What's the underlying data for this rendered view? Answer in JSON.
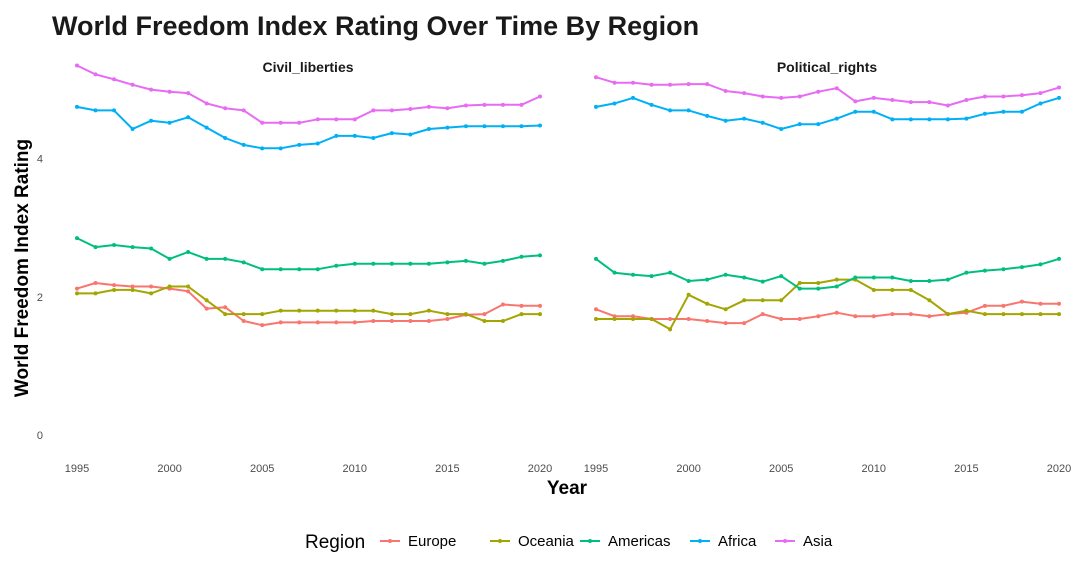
{
  "chart_data": {
    "type": "line",
    "title": "World Freedom Index Rating Over Time By Region",
    "xlabel": "Year",
    "ylabel": "World Freedom Index Rating",
    "ylim": [
      0,
      5.4
    ],
    "xlim": [
      1995,
      2020
    ],
    "x_ticks": [
      1995,
      2000,
      2005,
      2010,
      2015,
      2020
    ],
    "y_ticks": [
      0,
      2,
      4
    ],
    "grid": false,
    "legend": {
      "title": "Region",
      "placement": "bottom"
    },
    "colors": {
      "Europe": "#F8766D",
      "Oceania": "#A3A500",
      "Americas": "#00BF7D",
      "Africa": "#00B0F6",
      "Asia": "#E76BF3"
    },
    "facets": [
      {
        "name": "Civil_liberties",
        "x": [
          1995,
          1996,
          1997,
          1998,
          1999,
          2000,
          2001,
          2002,
          2003,
          2004,
          2005,
          2006,
          2007,
          2008,
          2009,
          2010,
          2011,
          2012,
          2013,
          2014,
          2015,
          2016,
          2017,
          2018,
          2019,
          2020
        ],
        "series": [
          {
            "name": "Europe",
            "values": [
              2.12,
              2.2,
              2.17,
              2.15,
              2.15,
              2.12,
              2.08,
              1.83,
              1.85,
              1.65,
              1.59,
              1.63,
              1.63,
              1.63,
              1.63,
              1.63,
              1.65,
              1.65,
              1.65,
              1.65,
              1.68,
              1.74,
              1.75,
              1.89,
              1.87,
              1.87
            ]
          },
          {
            "name": "Oceania",
            "values": [
              2.05,
              2.05,
              2.1,
              2.1,
              2.05,
              2.15,
              2.15,
              1.95,
              1.75,
              1.75,
              1.75,
              1.8,
              1.8,
              1.8,
              1.8,
              1.8,
              1.8,
              1.75,
              1.75,
              1.8,
              1.75,
              1.75,
              1.65,
              1.65,
              1.75,
              1.75
            ]
          },
          {
            "name": "Americas",
            "values": [
              2.85,
              2.72,
              2.75,
              2.72,
              2.7,
              2.55,
              2.65,
              2.55,
              2.55,
              2.5,
              2.4,
              2.4,
              2.4,
              2.4,
              2.45,
              2.48,
              2.48,
              2.48,
              2.48,
              2.48,
              2.5,
              2.52,
              2.48,
              2.52,
              2.58,
              2.6
            ]
          },
          {
            "name": "Africa",
            "values": [
              4.75,
              4.7,
              4.7,
              4.43,
              4.55,
              4.52,
              4.6,
              4.45,
              4.3,
              4.2,
              4.15,
              4.15,
              4.2,
              4.22,
              4.33,
              4.33,
              4.3,
              4.37,
              4.35,
              4.43,
              4.45,
              4.47,
              4.47,
              4.47,
              4.47,
              4.48
            ]
          },
          {
            "name": "Asia",
            "values": [
              5.35,
              5.22,
              5.15,
              5.07,
              5.0,
              4.97,
              4.95,
              4.8,
              4.73,
              4.7,
              4.52,
              4.52,
              4.52,
              4.57,
              4.57,
              4.57,
              4.7,
              4.7,
              4.72,
              4.75,
              4.73,
              4.77,
              4.78,
              4.78,
              4.78,
              4.9
            ]
          }
        ]
      },
      {
        "name": "Political_rights",
        "x": [
          1995,
          1996,
          1997,
          1998,
          1999,
          2000,
          2001,
          2002,
          2003,
          2004,
          2005,
          2006,
          2007,
          2008,
          2009,
          2010,
          2011,
          2012,
          2013,
          2014,
          2015,
          2016,
          2017,
          2018,
          2019,
          2020
        ],
        "series": [
          {
            "name": "Europe",
            "values": [
              1.82,
              1.72,
              1.72,
              1.68,
              1.68,
              1.68,
              1.65,
              1.62,
              1.62,
              1.75,
              1.68,
              1.68,
              1.72,
              1.77,
              1.72,
              1.72,
              1.75,
              1.75,
              1.72,
              1.75,
              1.77,
              1.87,
              1.87,
              1.93,
              1.9,
              1.9
            ]
          },
          {
            "name": "Oceania",
            "values": [
              1.68,
              1.68,
              1.68,
              1.68,
              1.53,
              2.03,
              1.9,
              1.82,
              1.95,
              1.95,
              1.95,
              2.2,
              2.2,
              2.25,
              2.25,
              2.1,
              2.1,
              2.1,
              1.95,
              1.75,
              1.8,
              1.75,
              1.75,
              1.75,
              1.75,
              1.75
            ]
          },
          {
            "name": "Americas",
            "values": [
              2.55,
              2.35,
              2.32,
              2.3,
              2.35,
              2.23,
              2.25,
              2.32,
              2.28,
              2.22,
              2.3,
              2.12,
              2.12,
              2.15,
              2.28,
              2.28,
              2.28,
              2.23,
              2.23,
              2.25,
              2.35,
              2.38,
              2.4,
              2.43,
              2.47,
              2.55
            ]
          },
          {
            "name": "Africa",
            "values": [
              4.75,
              4.8,
              4.88,
              4.78,
              4.7,
              4.7,
              4.62,
              4.55,
              4.58,
              4.52,
              4.43,
              4.5,
              4.5,
              4.58,
              4.68,
              4.68,
              4.57,
              4.57,
              4.57,
              4.57,
              4.58,
              4.65,
              4.68,
              4.68,
              4.8,
              4.88
            ]
          },
          {
            "name": "Asia",
            "values": [
              5.18,
              5.1,
              5.1,
              5.07,
              5.07,
              5.08,
              5.08,
              4.98,
              4.95,
              4.9,
              4.88,
              4.9,
              4.97,
              5.02,
              4.83,
              4.88,
              4.85,
              4.82,
              4.82,
              4.77,
              4.85,
              4.9,
              4.9,
              4.92,
              4.95,
              5.03
            ]
          }
        ]
      }
    ]
  }
}
